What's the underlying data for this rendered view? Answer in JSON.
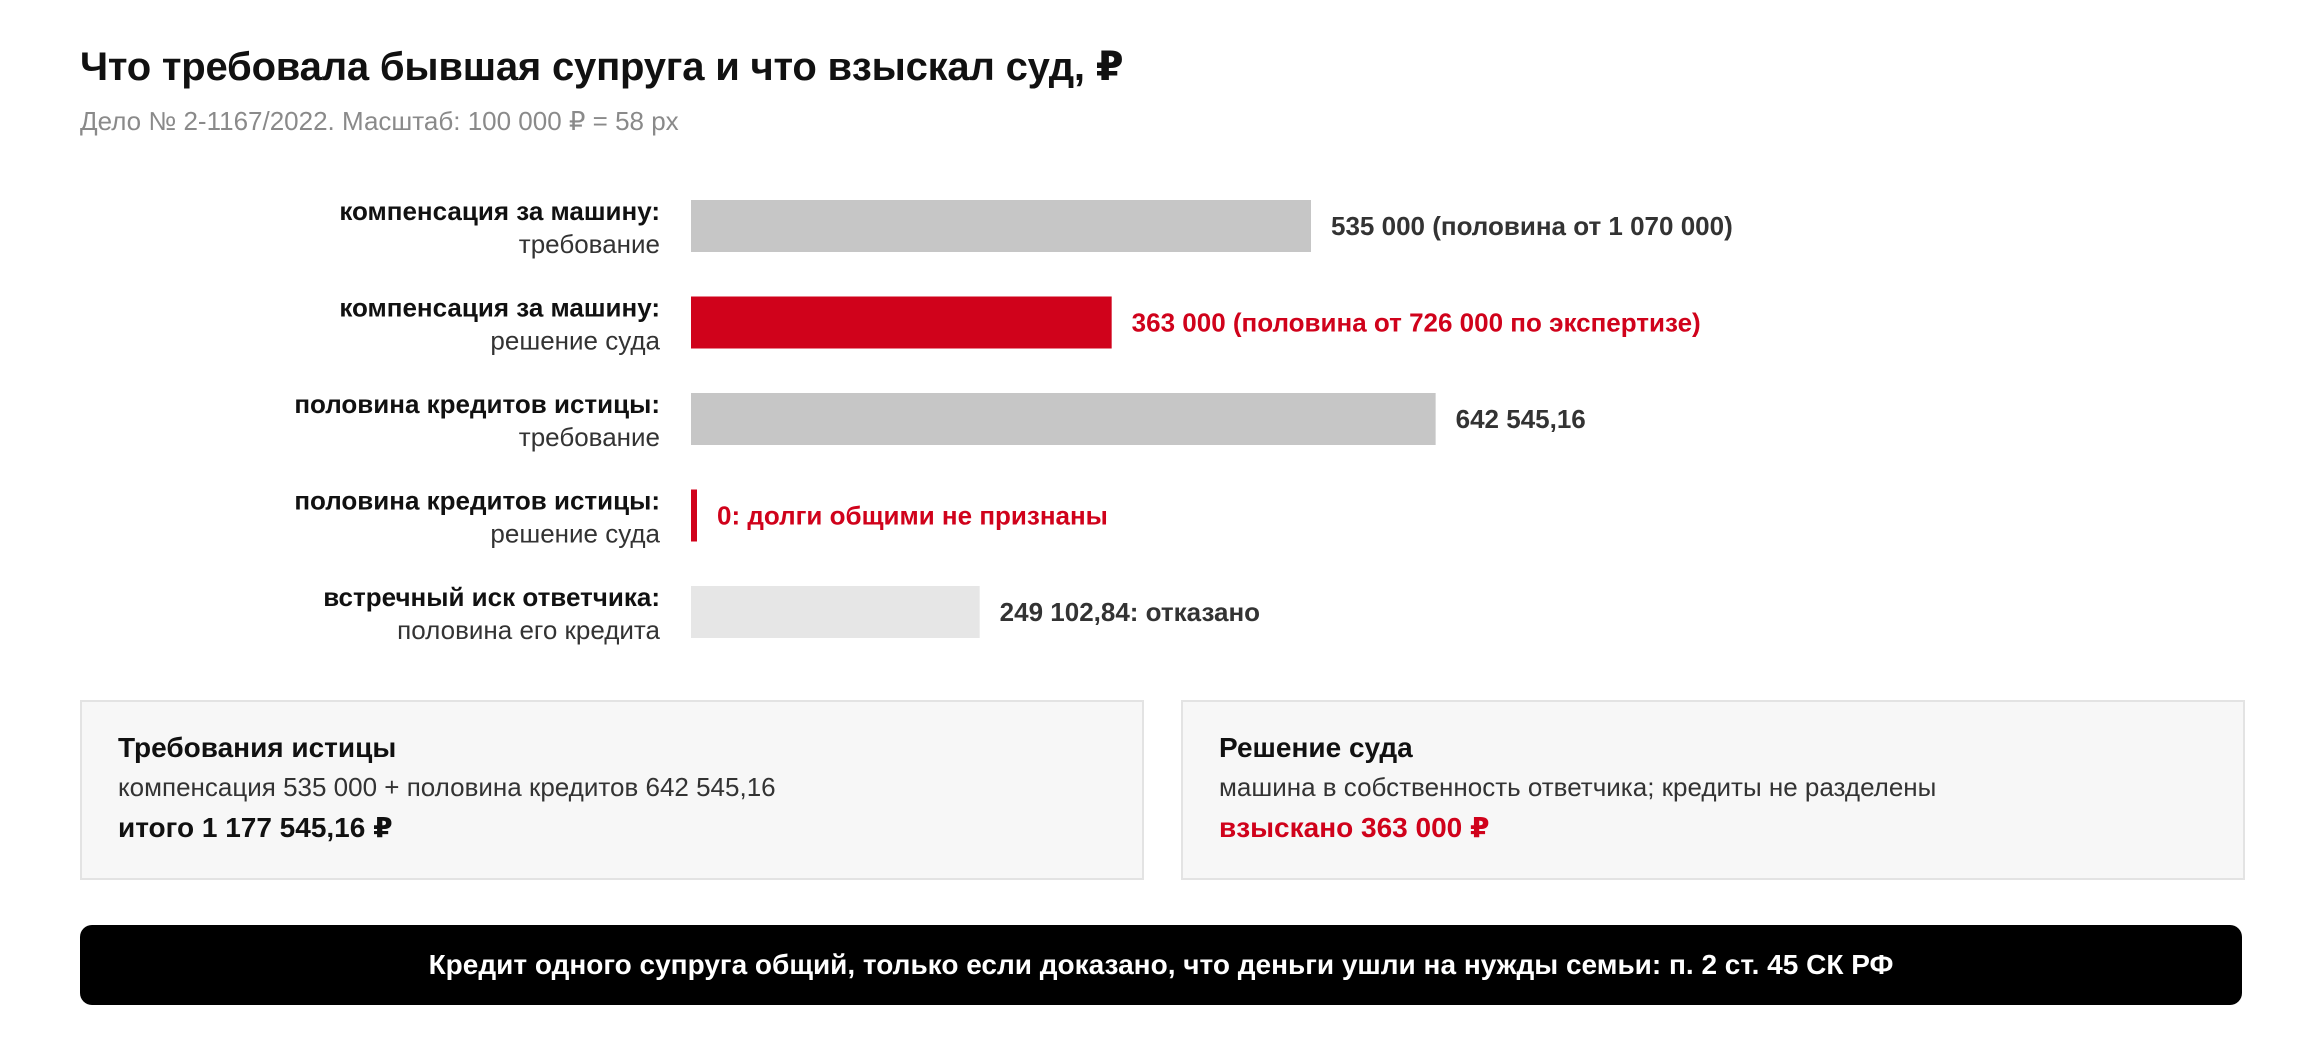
{
  "title": "Что требовала бывшая супруга и что взыскал суд, ₽",
  "subtitle": "Дело № 2-1167/2022. Масштаб: 100 000 ₽ = 58 px",
  "colors": {
    "claim": "#c6c6c6",
    "court": "#d0021b",
    "rejected": "#e6e6e6",
    "text": "#333333"
  },
  "chart_data": {
    "type": "bar",
    "orientation": "horizontal",
    "unit": "₽",
    "rows": [
      {
        "label_line1": "компенсация за машину:",
        "label_line2": "требование",
        "value": 535000,
        "value_label": "535 000 (половина от 1 070 000)",
        "kind": "claim"
      },
      {
        "label_line1": "компенсация за машину:",
        "label_line2": "решение суда",
        "value": 363000,
        "value_label": "363 000 (половина от 726 000 по экспертизе)",
        "kind": "court"
      },
      {
        "label_line1": "половина кредитов истицы:",
        "label_line2": "требование",
        "value": 642545.16,
        "value_label": "642 545,16",
        "kind": "claim"
      },
      {
        "label_line1": "половина кредитов истицы:",
        "label_line2": "решение суда",
        "value": 0,
        "value_label": "0: долги общими не признаны",
        "kind": "court"
      },
      {
        "label_line1": "встречный иск ответчика:",
        "label_line2": "половина его кредита",
        "value": 249102.84,
        "value_label": "249 102,84: отказано",
        "kind": "rejected"
      }
    ]
  },
  "panels": {
    "claims": {
      "title": "Требования истицы",
      "line": "компенсация 535 000 + половина кредитов 642 545,16",
      "total": "итого 1 177 545,16 ₽"
    },
    "court": {
      "title": "Решение суда",
      "line": "машина в собственность ответчика; кредиты не разделены",
      "total": "взыскано 363 000 ₽"
    }
  },
  "banner": "Кредит одного супруга общий, только если доказано, что деньги ушли на нужды семьи: п. 2 ст. 45 СК РФ"
}
